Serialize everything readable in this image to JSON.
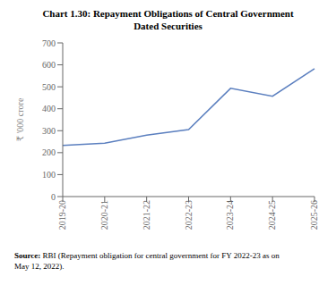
{
  "chart_data": {
    "type": "line",
    "title": "Chart 1.30: Repayment Obligations of Central Government\nDated Securities",
    "categories": [
      "2019-20",
      "2020-21",
      "2021-22",
      "2022-23",
      "2023-24",
      "2024-25",
      "2025-26"
    ],
    "values": [
      233,
      243,
      280,
      305,
      493,
      457,
      582
    ],
    "color": "#5b7fbf",
    "ylabel": "₹ '000 crore",
    "ylim": [
      0,
      700
    ],
    "yticks": [
      0,
      100,
      200,
      300,
      400,
      500,
      600,
      700
    ],
    "grid": false,
    "annotations": [
      "Source:",
      "RBI (Repayment obligation for central government for FY 2022-23 as on\nMay 12, 2022)."
    ]
  }
}
